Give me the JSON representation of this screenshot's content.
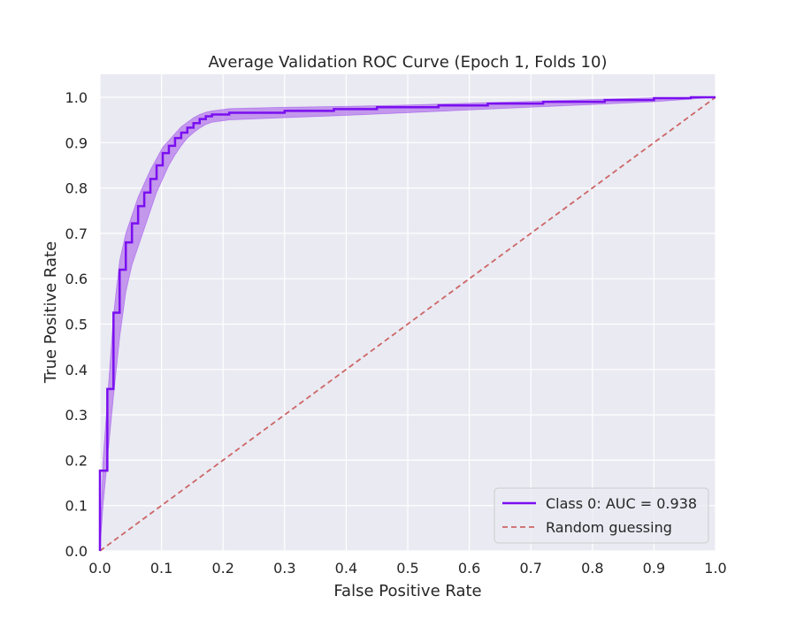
{
  "chart_data": {
    "type": "line",
    "title": "Average Validation ROC Curve (Epoch 1, Folds 10)",
    "xlabel": "False Positive Rate",
    "ylabel": "True Positive Rate",
    "xlim": [
      0.0,
      1.0
    ],
    "ylim": [
      0.0,
      1.0
    ],
    "x_ticks": [
      "0.0",
      "0.1",
      "0.2",
      "0.3",
      "0.4",
      "0.5",
      "0.6",
      "0.7",
      "0.8",
      "0.9",
      "1.0"
    ],
    "y_ticks": [
      "0.0",
      "0.1",
      "0.2",
      "0.3",
      "0.4",
      "0.5",
      "0.6",
      "0.7",
      "0.8",
      "0.9",
      "1.0"
    ],
    "grid": true,
    "legend_position": "bottom-right",
    "series": [
      {
        "name": "Class 0: AUC = 0.938",
        "color": "#7a0ff0",
        "style": "step",
        "points": [
          [
            0.0,
            0.0
          ],
          [
            0.0,
            0.177
          ],
          [
            0.012,
            0.177
          ],
          [
            0.012,
            0.357
          ],
          [
            0.022,
            0.357
          ],
          [
            0.022,
            0.525
          ],
          [
            0.032,
            0.525
          ],
          [
            0.032,
            0.62
          ],
          [
            0.042,
            0.62
          ],
          [
            0.042,
            0.68
          ],
          [
            0.052,
            0.68
          ],
          [
            0.052,
            0.722
          ],
          [
            0.062,
            0.722
          ],
          [
            0.062,
            0.76
          ],
          [
            0.072,
            0.76
          ],
          [
            0.072,
            0.79
          ],
          [
            0.082,
            0.79
          ],
          [
            0.082,
            0.82
          ],
          [
            0.092,
            0.82
          ],
          [
            0.092,
            0.85
          ],
          [
            0.102,
            0.85
          ],
          [
            0.102,
            0.877
          ],
          [
            0.112,
            0.877
          ],
          [
            0.112,
            0.893
          ],
          [
            0.122,
            0.893
          ],
          [
            0.122,
            0.91
          ],
          [
            0.132,
            0.91
          ],
          [
            0.132,
            0.922
          ],
          [
            0.142,
            0.922
          ],
          [
            0.142,
            0.933
          ],
          [
            0.152,
            0.933
          ],
          [
            0.152,
            0.943
          ],
          [
            0.162,
            0.943
          ],
          [
            0.162,
            0.952
          ],
          [
            0.172,
            0.952
          ],
          [
            0.172,
            0.958
          ],
          [
            0.182,
            0.958
          ],
          [
            0.182,
            0.962
          ],
          [
            0.21,
            0.962
          ],
          [
            0.21,
            0.966
          ],
          [
            0.3,
            0.966
          ],
          [
            0.3,
            0.97
          ],
          [
            0.38,
            0.97
          ],
          [
            0.38,
            0.974
          ],
          [
            0.45,
            0.974
          ],
          [
            0.45,
            0.978
          ],
          [
            0.55,
            0.978
          ],
          [
            0.55,
            0.982
          ],
          [
            0.63,
            0.982
          ],
          [
            0.63,
            0.986
          ],
          [
            0.72,
            0.986
          ],
          [
            0.72,
            0.99
          ],
          [
            0.82,
            0.99
          ],
          [
            0.82,
            0.994
          ],
          [
            0.9,
            0.994
          ],
          [
            0.9,
            0.998
          ],
          [
            0.96,
            0.998
          ],
          [
            0.96,
            1.0
          ],
          [
            1.0,
            1.0
          ]
        ],
        "band": {
          "color": "#a352e8",
          "upper": [
            [
              0.0,
              0.0
            ],
            [
              0.005,
              0.2
            ],
            [
              0.012,
              0.33
            ],
            [
              0.022,
              0.52
            ],
            [
              0.032,
              0.64
            ],
            [
              0.042,
              0.7
            ],
            [
              0.052,
              0.74
            ],
            [
              0.062,
              0.78
            ],
            [
              0.072,
              0.81
            ],
            [
              0.082,
              0.84
            ],
            [
              0.092,
              0.865
            ],
            [
              0.102,
              0.89
            ],
            [
              0.112,
              0.905
            ],
            [
              0.122,
              0.92
            ],
            [
              0.132,
              0.935
            ],
            [
              0.142,
              0.945
            ],
            [
              0.152,
              0.955
            ],
            [
              0.162,
              0.962
            ],
            [
              0.172,
              0.967
            ],
            [
              0.182,
              0.97
            ],
            [
              0.21,
              0.975
            ],
            [
              0.3,
              0.978
            ],
            [
              0.4,
              0.98
            ],
            [
              0.5,
              0.983
            ],
            [
              0.6,
              0.987
            ],
            [
              0.7,
              0.991
            ],
            [
              0.8,
              0.995
            ],
            [
              0.9,
              0.999
            ],
            [
              1.0,
              1.0
            ]
          ],
          "lower": [
            [
              0.0,
              0.0
            ],
            [
              0.005,
              0.1
            ],
            [
              0.012,
              0.2
            ],
            [
              0.022,
              0.34
            ],
            [
              0.032,
              0.47
            ],
            [
              0.042,
              0.57
            ],
            [
              0.052,
              0.63
            ],
            [
              0.062,
              0.67
            ],
            [
              0.072,
              0.71
            ],
            [
              0.082,
              0.75
            ],
            [
              0.092,
              0.79
            ],
            [
              0.102,
              0.82
            ],
            [
              0.112,
              0.85
            ],
            [
              0.122,
              0.873
            ],
            [
              0.132,
              0.893
            ],
            [
              0.142,
              0.91
            ],
            [
              0.152,
              0.922
            ],
            [
              0.162,
              0.932
            ],
            [
              0.172,
              0.94
            ],
            [
              0.182,
              0.945
            ],
            [
              0.21,
              0.95
            ],
            [
              0.3,
              0.955
            ],
            [
              0.4,
              0.96
            ],
            [
              0.5,
              0.966
            ],
            [
              0.6,
              0.972
            ],
            [
              0.7,
              0.978
            ],
            [
              0.8,
              0.984
            ],
            [
              0.9,
              0.99
            ],
            [
              1.0,
              1.0
            ]
          ]
        }
      },
      {
        "name": "Random guessing",
        "color": "#cc6666",
        "style": "dashed",
        "points": [
          [
            0.0,
            0.0
          ],
          [
            1.0,
            1.0
          ]
        ]
      }
    ]
  },
  "colors": {
    "plot_background": "#eaeaf2",
    "grid": "#ffffff",
    "text": "#262626",
    "legend_background": "#eaeaf2",
    "legend_border": "#cccccc"
  }
}
